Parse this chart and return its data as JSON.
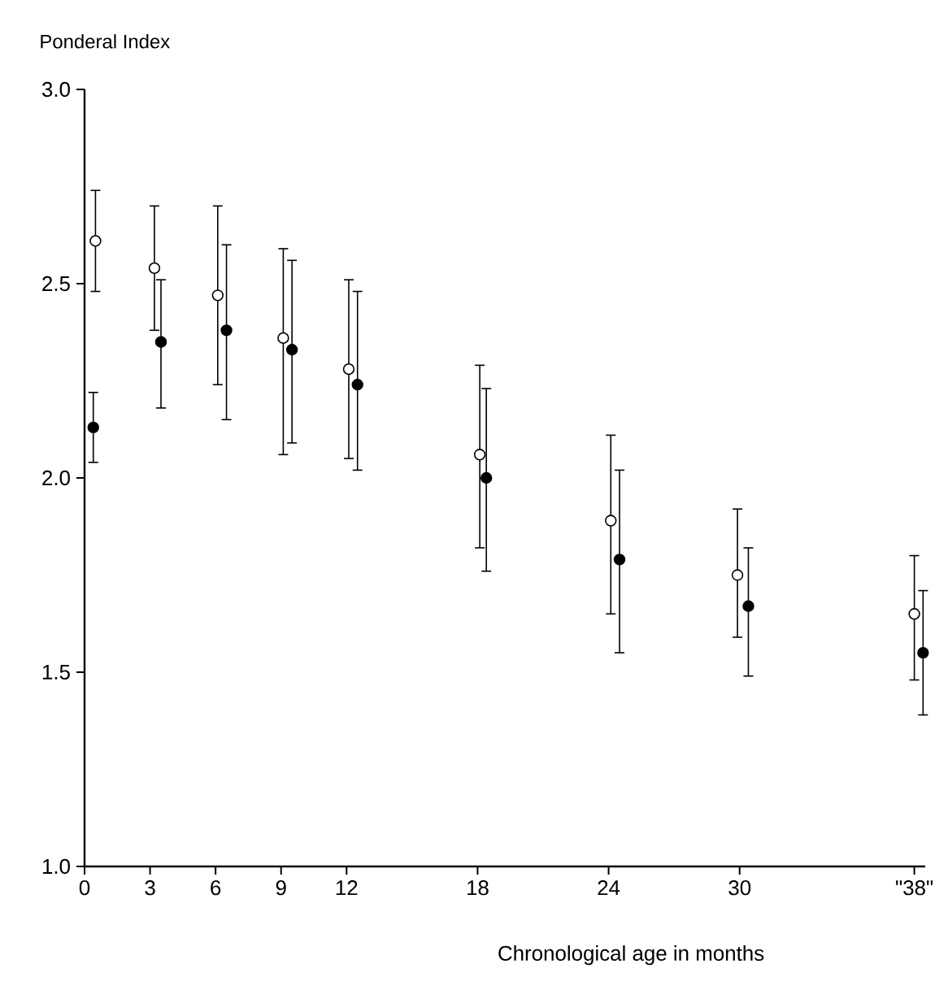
{
  "chart_data": {
    "type": "scatter",
    "ylabel": "Ponderal Index",
    "xlabel": "Chronological age in months",
    "xlim": [
      0,
      38.5
    ],
    "ylim": [
      1.0,
      3.0
    ],
    "xticks": [
      0,
      3,
      6,
      9,
      12,
      18,
      24,
      30,
      {
        "value": 38,
        "label": "\"38\""
      }
    ],
    "yticks": [
      {
        "value": 1.0,
        "label": "1.0"
      },
      {
        "value": 1.5,
        "label": "1.5"
      },
      {
        "value": 2.0,
        "label": "2.0"
      },
      {
        "value": 2.5,
        "label": "2.5"
      },
      {
        "value": 3.0,
        "label": "3.0"
      }
    ],
    "grid": false,
    "series": [
      {
        "color": "#ffffff",
        "x": [
          0.5,
          3.2,
          6.1,
          9.1,
          12.1,
          18.1,
          24.1,
          29.9,
          38.0
        ],
        "values": [
          2.61,
          2.54,
          2.47,
          2.36,
          2.28,
          2.06,
          1.89,
          1.75,
          1.65
        ],
        "errors": [
          [
            2.48,
            2.74
          ],
          [
            2.38,
            2.7
          ],
          [
            2.24,
            2.7
          ],
          [
            2.06,
            2.59
          ],
          [
            2.05,
            2.51
          ],
          [
            1.82,
            2.29
          ],
          [
            1.65,
            2.11
          ],
          [
            1.59,
            1.92
          ],
          [
            1.48,
            1.8
          ]
        ]
      },
      {
        "color": "#000000",
        "x": [
          0.4,
          3.5,
          6.5,
          9.5,
          12.5,
          18.4,
          24.5,
          30.4,
          38.4
        ],
        "values": [
          2.13,
          2.35,
          2.38,
          2.33,
          2.24,
          2.0,
          1.79,
          1.67,
          1.55
        ],
        "errors": [
          [
            2.04,
            2.22
          ],
          [
            2.18,
            2.51
          ],
          [
            2.15,
            2.6
          ],
          [
            2.09,
            2.56
          ],
          [
            2.02,
            2.48
          ],
          [
            1.76,
            2.23
          ],
          [
            1.55,
            2.02
          ],
          [
            1.49,
            1.82
          ],
          [
            1.39,
            1.71
          ]
        ]
      }
    ]
  }
}
